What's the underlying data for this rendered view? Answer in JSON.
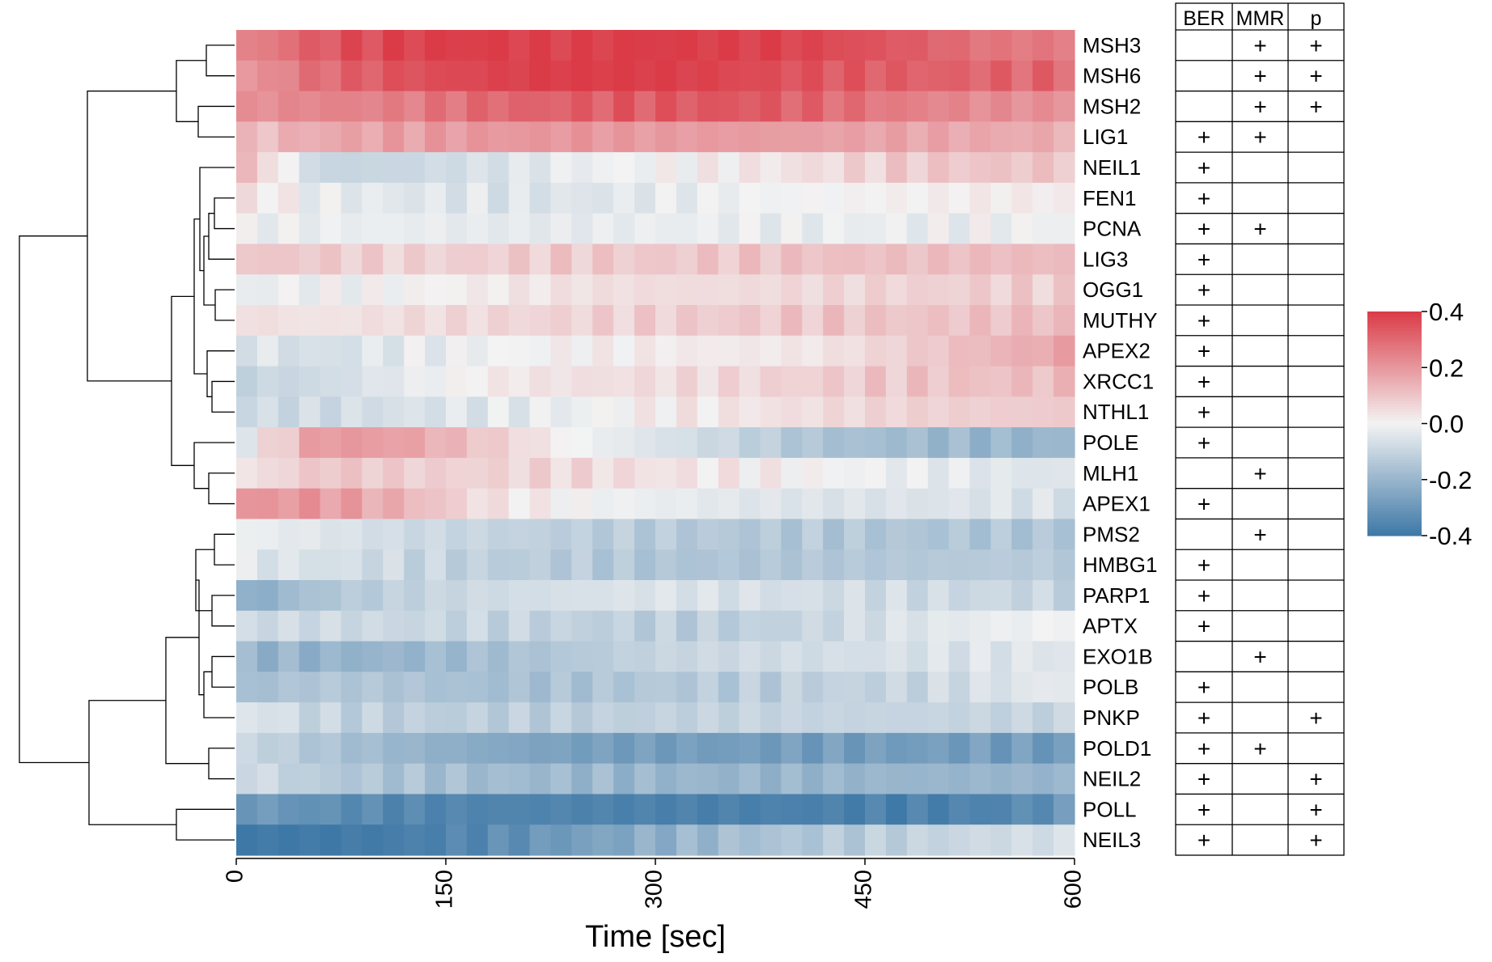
{
  "chart_data": {
    "type": "heatmap",
    "xlabel": "Time [sec]",
    "x_ticks": [
      0,
      150,
      300,
      450,
      600
    ],
    "x_range": [
      0,
      600
    ],
    "rows": [
      "MSH3",
      "MSH6",
      "MSH2",
      "LIG1",
      "NEIL1",
      "FEN1",
      "PCNA",
      "LIG3",
      "OGG1",
      "MUTHY",
      "APEX2",
      "XRCC1",
      "NTHL1",
      "POLE",
      "MLH1",
      "APEX1",
      "PMS2",
      "HMBG1",
      "PARP1",
      "APTX",
      "EXO1B",
      "POLB",
      "PNKP",
      "POLD1",
      "NEIL2",
      "POLL",
      "NEIL3"
    ],
    "row_dendrogram": true,
    "profile_time_points": [
      0,
      60,
      120,
      180,
      240,
      300,
      360,
      420,
      480,
      540,
      600
    ],
    "profiles": [
      [
        0.22,
        0.33,
        0.39,
        0.4,
        0.4,
        0.4,
        0.4,
        0.37,
        0.33,
        0.27,
        0.26
      ],
      [
        0.18,
        0.29,
        0.35,
        0.38,
        0.4,
        0.4,
        0.37,
        0.34,
        0.32,
        0.31,
        0.3
      ],
      [
        0.21,
        0.24,
        0.25,
        0.3,
        0.32,
        0.33,
        0.34,
        0.3,
        0.25,
        0.22,
        0.21
      ],
      [
        0.1,
        0.16,
        0.18,
        0.2,
        0.2,
        0.19,
        0.19,
        0.18,
        0.17,
        0.16,
        0.15
      ],
      [
        0.15,
        -0.1,
        -0.09,
        -0.06,
        -0.02,
        0.0,
        0.02,
        0.05,
        0.09,
        0.1,
        0.1
      ],
      [
        0.05,
        -0.02,
        -0.04,
        -0.05,
        -0.05,
        -0.03,
        -0.01,
        0.0,
        0.01,
        0.02,
        0.02
      ],
      [
        -0.01,
        -0.02,
        -0.02,
        -0.03,
        -0.03,
        -0.02,
        -0.02,
        -0.02,
        -0.02,
        -0.01,
        -0.01
      ],
      [
        0.1,
        0.09,
        0.07,
        0.08,
        0.09,
        0.09,
        0.1,
        0.11,
        0.11,
        0.12,
        0.12
      ],
      [
        -0.02,
        -0.01,
        0.0,
        0.02,
        0.04,
        0.05,
        0.05,
        0.06,
        0.07,
        0.08,
        0.08
      ],
      [
        0.05,
        0.03,
        0.05,
        0.06,
        0.07,
        0.08,
        0.09,
        0.1,
        0.1,
        0.11,
        0.12
      ],
      [
        -0.04,
        -0.07,
        -0.03,
        -0.01,
        0.01,
        0.02,
        0.02,
        0.03,
        0.08,
        0.13,
        0.18
      ],
      [
        -0.1,
        -0.08,
        -0.03,
        0.02,
        0.04,
        0.05,
        0.06,
        0.08,
        0.1,
        0.11,
        0.12
      ],
      [
        -0.08,
        -0.08,
        -0.06,
        -0.04,
        -0.02,
        0.02,
        0.03,
        0.05,
        0.07,
        0.08,
        0.09
      ],
      [
        -0.05,
        0.2,
        0.18,
        0.09,
        0.0,
        -0.05,
        -0.1,
        -0.16,
        -0.18,
        -0.2,
        -0.2
      ],
      [
        0.02,
        0.1,
        0.08,
        0.07,
        0.06,
        0.04,
        0.02,
        0.0,
        -0.02,
        -0.04,
        -0.05
      ],
      [
        0.2,
        0.2,
        0.14,
        0.04,
        0.0,
        -0.02,
        -0.04,
        -0.05,
        -0.05,
        -0.05,
        -0.06
      ],
      [
        -0.01,
        -0.04,
        -0.08,
        -0.1,
        -0.12,
        -0.13,
        -0.14,
        -0.14,
        -0.15,
        -0.15,
        -0.15
      ],
      [
        -0.04,
        -0.06,
        -0.09,
        -0.12,
        -0.13,
        -0.15,
        -0.15,
        -0.14,
        -0.14,
        -0.13,
        -0.13
      ],
      [
        -0.25,
        -0.15,
        -0.11,
        -0.08,
        -0.06,
        -0.05,
        -0.06,
        -0.07,
        -0.08,
        -0.09,
        -0.1
      ],
      [
        -0.08,
        -0.08,
        -0.09,
        -0.1,
        -0.11,
        -0.12,
        -0.12,
        -0.09,
        -0.05,
        -0.02,
        0.0
      ],
      [
        -0.2,
        -0.21,
        -0.2,
        -0.17,
        -0.14,
        -0.1,
        -0.08,
        -0.07,
        -0.06,
        -0.05,
        -0.04
      ],
      [
        -0.18,
        -0.14,
        -0.15,
        -0.17,
        -0.16,
        -0.14,
        -0.13,
        -0.11,
        -0.1,
        -0.06,
        -0.02
      ],
      [
        -0.03,
        -0.1,
        -0.12,
        -0.12,
        -0.12,
        -0.11,
        -0.1,
        -0.1,
        -0.1,
        -0.1,
        -0.1
      ],
      [
        -0.08,
        -0.15,
        -0.2,
        -0.24,
        -0.27,
        -0.28,
        -0.28,
        -0.28,
        -0.28,
        -0.28,
        -0.29
      ],
      [
        -0.06,
        -0.13,
        -0.16,
        -0.18,
        -0.19,
        -0.2,
        -0.2,
        -0.2,
        -0.2,
        -0.2,
        -0.2
      ],
      [
        -0.28,
        -0.32,
        -0.35,
        -0.36,
        -0.36,
        -0.37,
        -0.37,
        -0.37,
        -0.37,
        -0.36,
        -0.3
      ],
      [
        -0.4,
        -0.4,
        -0.38,
        -0.34,
        -0.28,
        -0.22,
        -0.17,
        -0.14,
        -0.11,
        -0.08,
        -0.06
      ]
    ],
    "colorbar": {
      "min": -0.4,
      "max": 0.4,
      "ticks": [
        "0.4",
        "0.2",
        "0.0",
        "-0.2",
        "-0.4"
      ]
    },
    "colors": {
      "low": "#3e78a6",
      "mid": "#f3f3f3",
      "high": "#da3b47"
    },
    "annotation_table": {
      "headers": [
        "BER",
        "MMR",
        "p"
      ],
      "rows": [
        [
          "",
          "+",
          "+"
        ],
        [
          "",
          "+",
          "+"
        ],
        [
          "",
          "+",
          "+"
        ],
        [
          "+",
          "+",
          ""
        ],
        [
          "+",
          "",
          ""
        ],
        [
          "+",
          "",
          ""
        ],
        [
          "+",
          "+",
          ""
        ],
        [
          "+",
          "",
          ""
        ],
        [
          "+",
          "",
          ""
        ],
        [
          "+",
          "",
          ""
        ],
        [
          "+",
          "",
          ""
        ],
        [
          "+",
          "",
          ""
        ],
        [
          "+",
          "",
          ""
        ],
        [
          "+",
          "",
          ""
        ],
        [
          "",
          "+",
          ""
        ],
        [
          "+",
          "",
          ""
        ],
        [
          "",
          "+",
          ""
        ],
        [
          "+",
          "",
          ""
        ],
        [
          "+",
          "",
          ""
        ],
        [
          "+",
          "",
          ""
        ],
        [
          "",
          "+",
          ""
        ],
        [
          "+",
          "",
          ""
        ],
        [
          "+",
          "",
          "+"
        ],
        [
          "+",
          "+",
          ""
        ],
        [
          "+",
          "",
          "+"
        ],
        [
          "+",
          "",
          "+"
        ],
        [
          "+",
          "",
          "+"
        ]
      ]
    }
  }
}
